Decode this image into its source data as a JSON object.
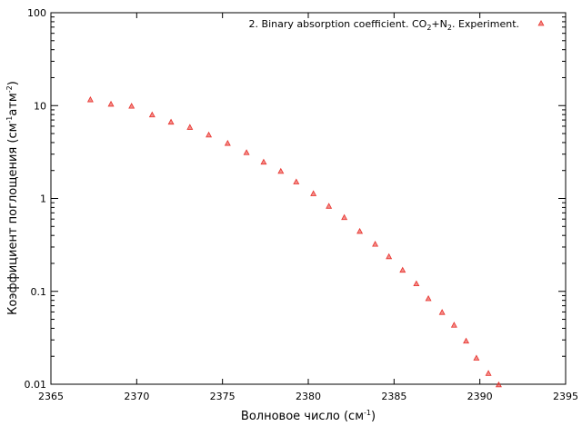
{
  "chart_data": {
    "type": "scatter",
    "xlabel": {
      "main": "Волновое число (см",
      "sup": "-1",
      "tail": ")"
    },
    "ylabel": {
      "main": "Коэффициент поглощения (см",
      "sup1": "-1",
      "mid": "атм",
      "sup2": "-2",
      "tail": ")"
    },
    "xlim": [
      2365,
      2395
    ],
    "ylim": [
      0.01,
      100
    ],
    "yscale": "log",
    "grid": false,
    "legend_position": "top-right",
    "x_ticks": [
      2365,
      2370,
      2375,
      2380,
      2385,
      2390,
      2395
    ],
    "x_tick_labels": [
      "2365",
      "2370",
      "2375",
      "2380",
      "2385",
      "2390",
      "2395"
    ],
    "y_ticks": [
      0.01,
      0.1,
      1,
      10,
      100
    ],
    "y_tick_labels": [
      "0.01",
      "0.1",
      "1",
      "10",
      "100"
    ],
    "series": [
      {
        "name": "2. Binary absorption coefficient. CO2+N2. Experiment.",
        "legend": {
          "pre": "2. Binary absorption coefficient. CO",
          "sub1": "2",
          "mid": "+N",
          "sub2": "2",
          "post": ". Experiment."
        },
        "color": "#e8302a",
        "marker": "triangle",
        "x": [
          2367.3,
          2368.5,
          2369.7,
          2370.9,
          2372.0,
          2373.1,
          2374.2,
          2375.3,
          2376.4,
          2377.4,
          2378.4,
          2379.3,
          2380.3,
          2381.2,
          2382.1,
          2383.0,
          2383.9,
          2384.7,
          2385.5,
          2386.3,
          2387.0,
          2387.8,
          2388.5,
          2389.2,
          2389.8,
          2390.5,
          2391.1
        ],
        "y": [
          11.5,
          10.3,
          9.8,
          7.9,
          6.6,
          5.8,
          4.8,
          3.9,
          3.1,
          2.45,
          1.95,
          1.5,
          1.12,
          0.82,
          0.62,
          0.44,
          0.32,
          0.235,
          0.168,
          0.12,
          0.083,
          0.059,
          0.043,
          0.029,
          0.019,
          0.013,
          0.0098
        ]
      }
    ]
  }
}
